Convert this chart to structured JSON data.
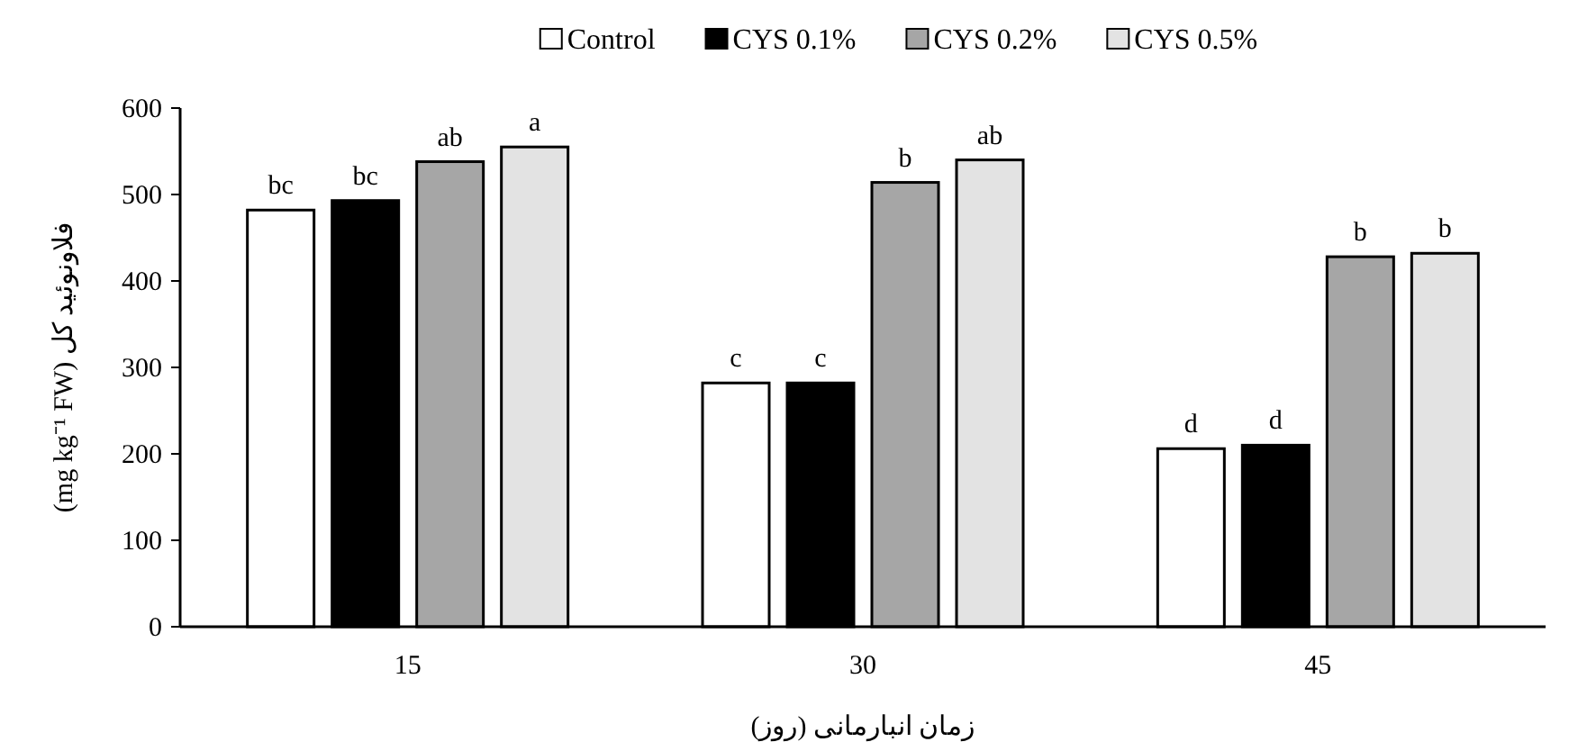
{
  "chart_data": {
    "type": "bar",
    "xlabel": "زمان انبارمانی (روز)",
    "ylabel": "فلاونوئید کل (mg kg⁻¹ FW)",
    "categories": [
      "15",
      "30",
      "45"
    ],
    "series": [
      {
        "name": "Control",
        "color": "#ffffff",
        "values": [
          482,
          282,
          206
        ],
        "value_labels": [
          "bc",
          "c",
          "d"
        ]
      },
      {
        "name": "CYS 0.1%",
        "color": "#000000",
        "values": [
          493,
          282,
          210
        ],
        "value_labels": [
          "bc",
          "c",
          "d"
        ]
      },
      {
        "name": "CYS 0.2%",
        "color": "#a6a6a6",
        "values": [
          538,
          514,
          428
        ],
        "value_labels": [
          "ab",
          "b",
          "b"
        ]
      },
      {
        "name": "CYS 0.5%",
        "color": "#e3e3e3",
        "values": [
          555,
          540,
          432
        ],
        "value_labels": [
          "a",
          "ab",
          "b"
        ]
      }
    ],
    "ylim": [
      0,
      600
    ],
    "yticks": [
      0,
      100,
      200,
      300,
      400,
      500,
      600
    ],
    "legend": "top",
    "grid": false
  }
}
